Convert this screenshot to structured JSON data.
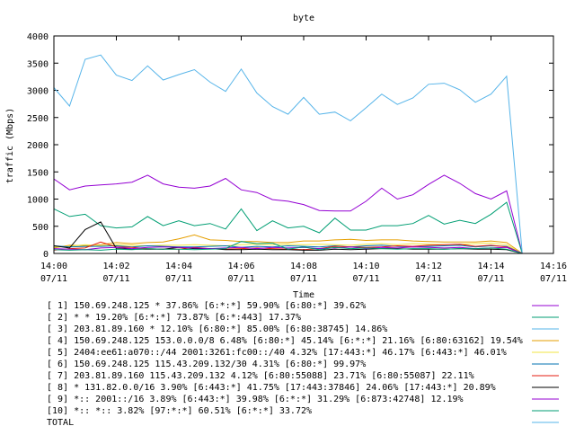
{
  "chart_data": {
    "type": "line",
    "title": "byte",
    "xlabel": "Time",
    "ylabel": "traffic (Mbps)",
    "ylim": [
      0,
      4000
    ],
    "yticks": [
      "0",
      "500",
      "1000",
      "1500",
      "2000",
      "2500",
      "3000",
      "3500",
      "4000"
    ],
    "xlim": [
      "14:00",
      "14:16"
    ],
    "xticks": [
      {
        "time": "14:00",
        "date": "07/11"
      },
      {
        "time": "14:02",
        "date": "07/11"
      },
      {
        "time": "14:04",
        "date": "07/11"
      },
      {
        "time": "14:06",
        "date": "07/11"
      },
      {
        "time": "14:08",
        "date": "07/11"
      },
      {
        "time": "14:10",
        "date": "07/11"
      },
      {
        "time": "14:12",
        "date": "07/11"
      },
      {
        "time": "14:14",
        "date": "07/11"
      },
      {
        "time": "14:16",
        "date": "07/11"
      }
    ],
    "grid": false,
    "legend_position": "bottom",
    "x": [
      "14:00:00",
      "14:00:30",
      "14:01:00",
      "14:01:30",
      "14:02:00",
      "14:02:30",
      "14:03:00",
      "14:03:30",
      "14:04:00",
      "14:04:30",
      "14:05:00",
      "14:05:30",
      "14:06:00",
      "14:06:30",
      "14:07:00",
      "14:07:30",
      "14:08:00",
      "14:08:30",
      "14:09:00",
      "14:09:30",
      "14:10:00",
      "14:10:30",
      "14:11:00",
      "14:11:30",
      "14:12:00",
      "14:12:30",
      "14:13:00",
      "14:13:30",
      "14:14:00",
      "14:14:30",
      "14:15:00"
    ],
    "series": [
      {
        "name": "[ 1] 150.69.248.125 * 37.86%  [6:*:*] 59.90% [6:80:*] 39.62%",
        "color": "#9400d3",
        "values": [
          1370,
          1170,
          1240,
          1260,
          1280,
          1310,
          1440,
          1280,
          1220,
          1200,
          1240,
          1380,
          1170,
          1120,
          990,
          960,
          900,
          790,
          780,
          780,
          960,
          1200,
          1000,
          1080,
          1270,
          1440,
          1290,
          1100,
          1000,
          1150,
          0
        ]
      },
      {
        "name": "[ 2] * * 19.20%  [6:*:*] 73.87% [6:*:443] 17.37%",
        "color": "#009e73",
        "values": [
          820,
          680,
          720,
          510,
          470,
          490,
          680,
          510,
          600,
          510,
          550,
          450,
          820,
          420,
          600,
          470,
          500,
          380,
          650,
          430,
          430,
          510,
          510,
          550,
          700,
          540,
          610,
          550,
          720,
          940,
          0
        ]
      },
      {
        "name": "[ 3] 203.81.89.160 * 12.10%  [6:80:*] 85.00% [6:80:38745] 14.86%",
        "color": "#56b4e9",
        "values": [
          3050,
          2710,
          3570,
          3650,
          3280,
          3180,
          3450,
          3190,
          3290,
          3380,
          3150,
          2980,
          3390,
          2950,
          2700,
          2560,
          2870,
          2560,
          2600,
          2440,
          2680,
          2930,
          2740,
          2860,
          3110,
          3130,
          3010,
          2780,
          2930,
          3260,
          0
        ]
      },
      {
        "name": "[ 4] 150.69.248.125 153.0.0.0/8 6.48%  [6:80:*] 45.14% [6:*:*] 21.16% [6:80:63162] 19.54%",
        "color": "#e69f00",
        "values": [
          100,
          150,
          140,
          160,
          200,
          180,
          200,
          210,
          270,
          340,
          250,
          240,
          220,
          220,
          200,
          200,
          230,
          230,
          250,
          260,
          240,
          250,
          250,
          230,
          220,
          210,
          210,
          210,
          230,
          200,
          0
        ]
      },
      {
        "name": "[ 5] 2404:ee61:a070::/44 2001:3261:fc00::/40 4.32%  [17:443:*] 46.17% [6:443:*] 46.01%",
        "color": "#f0e442",
        "values": [
          120,
          130,
          160,
          140,
          160,
          150,
          140,
          150,
          150,
          160,
          150,
          140,
          160,
          170,
          160,
          170,
          160,
          170,
          160,
          150,
          170,
          180,
          160,
          180,
          170,
          160,
          170,
          180,
          190,
          160,
          0
        ]
      },
      {
        "name": "[ 6] 150.69.248.125 115.43.209.132/30 4.31%  [6:80:*] 99.97%",
        "color": "#0072b2",
        "values": [
          140,
          120,
          130,
          130,
          140,
          120,
          140,
          130,
          120,
          120,
          130,
          140,
          110,
          130,
          120,
          140,
          130,
          120,
          140,
          120,
          140,
          150,
          130,
          120,
          130,
          140,
          150,
          120,
          140,
          130,
          0
        ]
      },
      {
        "name": "[ 7] 203.81.89.160 115.43.209.132 4.12%  [6:80:55088] 23.71% [6:80:55087] 22.11%",
        "color": "#e51e10",
        "values": [
          60,
          90,
          100,
          210,
          120,
          110,
          90,
          80,
          80,
          110,
          90,
          80,
          90,
          100,
          90,
          80,
          70,
          90,
          130,
          120,
          110,
          120,
          140,
          130,
          150,
          160,
          170,
          130,
          150,
          120,
          0
        ]
      },
      {
        "name": "[ 8] * 131.82.0.0/16 3.90%  [6:443:*] 41.75% [17:443:37846] 24.06% [17:443:*] 20.89%",
        "color": "#000000",
        "values": [
          140,
          100,
          440,
          580,
          90,
          80,
          80,
          80,
          110,
          90,
          90,
          70,
          70,
          80,
          70,
          70,
          60,
          60,
          80,
          70,
          80,
          90,
          90,
          80,
          80,
          80,
          90,
          80,
          80,
          70,
          0
        ]
      },
      {
        "name": "[ 9] *:: 2001::/16 3.89%  [6:443:*] 39.98% [6:*:*] 31.29% [6:873:42748] 12.19%",
        "color": "#9400d3",
        "values": [
          90,
          80,
          70,
          100,
          110,
          90,
          110,
          120,
          110,
          100,
          90,
          100,
          110,
          90,
          110,
          100,
          110,
          90,
          100,
          120,
          90,
          110,
          100,
          120,
          110,
          100,
          110,
          90,
          100,
          110,
          0
        ]
      },
      {
        "name": "[10] *:: *:: 3.82%  [97:*:*] 60.51% [6:*:*] 33.72%",
        "color": "#009e73",
        "values": [
          70,
          60,
          70,
          60,
          80,
          70,
          90,
          80,
          80,
          70,
          80,
          90,
          220,
          180,
          190,
          80,
          120,
          70,
          110,
          90,
          100,
          90,
          80,
          90,
          90,
          80,
          90,
          90,
          100,
          80,
          0
        ]
      }
    ],
    "total_label": "TOTAL",
    "total_color": "#56b4e9"
  }
}
